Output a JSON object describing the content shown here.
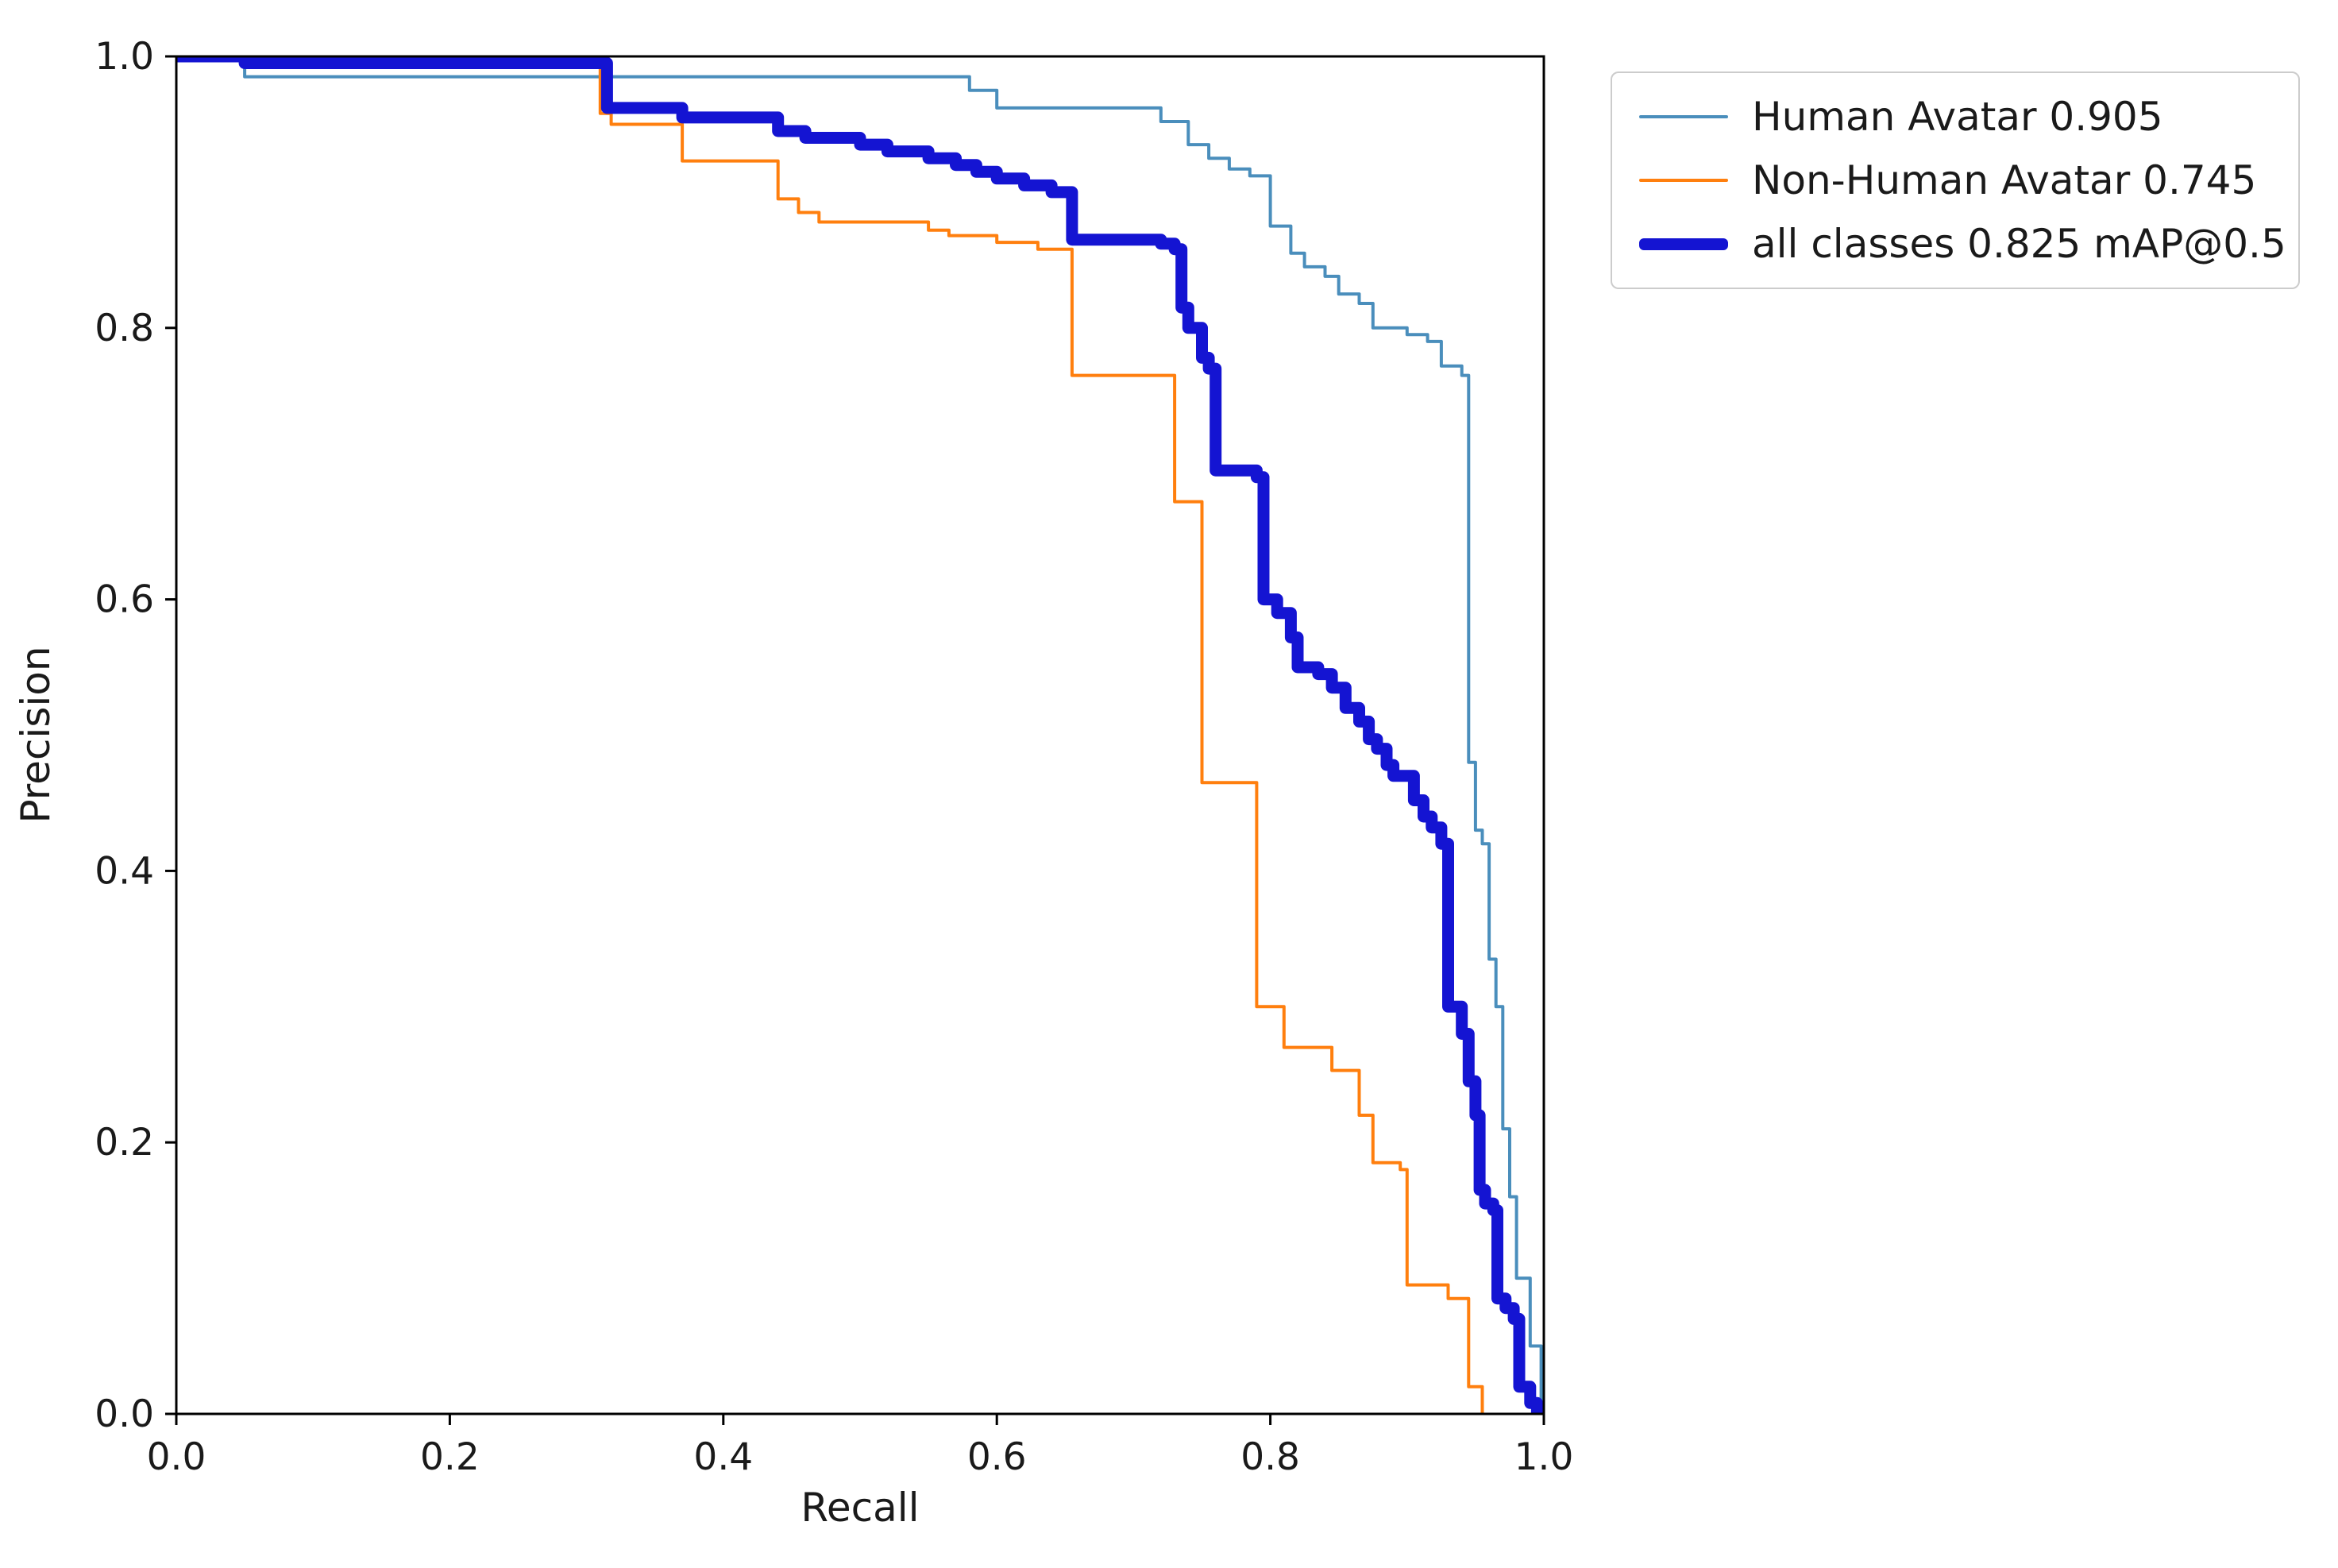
{
  "chart_data": {
    "type": "line",
    "subtype": "precision-recall-step-curves",
    "title": "",
    "xlabel": "Recall",
    "ylabel": "Precision",
    "xlim": [
      0.0,
      1.0
    ],
    "ylim": [
      0.0,
      1.0
    ],
    "grid": false,
    "legend_position": "outside-top-right",
    "x_ticks": {
      "values": [
        0.0,
        0.2,
        0.4,
        0.6,
        0.8,
        1.0
      ],
      "labels": [
        "0.0",
        "0.2",
        "0.4",
        "0.6",
        "0.8",
        "1.0"
      ]
    },
    "y_ticks": {
      "values": [
        0.0,
        0.2,
        0.4,
        0.6,
        0.8,
        1.0
      ],
      "labels": [
        "0.0",
        "0.2",
        "0.4",
        "0.6",
        "0.8",
        "1.0"
      ]
    },
    "series": [
      {
        "name": "human-avatar",
        "label": "Human Avatar 0.905",
        "ap": 0.905,
        "color": "#4a8ebc",
        "line_width": 4,
        "points": [
          [
            0.0,
            1.0
          ],
          [
            0.05,
            0.985
          ],
          [
            0.58,
            0.975
          ],
          [
            0.6,
            0.962
          ],
          [
            0.72,
            0.952
          ],
          [
            0.74,
            0.935
          ],
          [
            0.755,
            0.925
          ],
          [
            0.77,
            0.917
          ],
          [
            0.785,
            0.912
          ],
          [
            0.8,
            0.875
          ],
          [
            0.815,
            0.855
          ],
          [
            0.825,
            0.845
          ],
          [
            0.84,
            0.838
          ],
          [
            0.85,
            0.825
          ],
          [
            0.865,
            0.818
          ],
          [
            0.875,
            0.8
          ],
          [
            0.9,
            0.795
          ],
          [
            0.915,
            0.79
          ],
          [
            0.925,
            0.772
          ],
          [
            0.94,
            0.765
          ],
          [
            0.945,
            0.48
          ],
          [
            0.95,
            0.43
          ],
          [
            0.955,
            0.42
          ],
          [
            0.96,
            0.335
          ],
          [
            0.965,
            0.3
          ],
          [
            0.97,
            0.21
          ],
          [
            0.975,
            0.16
          ],
          [
            0.98,
            0.1
          ],
          [
            0.99,
            0.05
          ],
          [
            0.998,
            0.0
          ]
        ]
      },
      {
        "name": "non-human-avatar",
        "label": "Non-Human Avatar 0.745",
        "ap": 0.745,
        "color": "#ff7f0e",
        "line_width": 4,
        "points": [
          [
            0.0,
            1.0
          ],
          [
            0.31,
            0.958
          ],
          [
            0.318,
            0.95
          ],
          [
            0.37,
            0.923
          ],
          [
            0.44,
            0.895
          ],
          [
            0.455,
            0.885
          ],
          [
            0.47,
            0.878
          ],
          [
            0.55,
            0.872
          ],
          [
            0.565,
            0.868
          ],
          [
            0.6,
            0.863
          ],
          [
            0.63,
            0.858
          ],
          [
            0.655,
            0.765
          ],
          [
            0.73,
            0.672
          ],
          [
            0.75,
            0.465
          ],
          [
            0.79,
            0.3
          ],
          [
            0.81,
            0.27
          ],
          [
            0.845,
            0.253
          ],
          [
            0.865,
            0.22
          ],
          [
            0.875,
            0.185
          ],
          [
            0.895,
            0.18
          ],
          [
            0.9,
            0.095
          ],
          [
            0.93,
            0.085
          ],
          [
            0.945,
            0.02
          ],
          [
            0.955,
            0.0
          ]
        ]
      },
      {
        "name": "all-classes",
        "label": "all classes 0.825 mAP@0.5",
        "map_at_05": 0.825,
        "color": "#1414d2",
        "line_width": 15,
        "points": [
          [
            0.0,
            1.0
          ],
          [
            0.05,
            0.995
          ],
          [
            0.315,
            0.962
          ],
          [
            0.37,
            0.955
          ],
          [
            0.44,
            0.945
          ],
          [
            0.46,
            0.94
          ],
          [
            0.5,
            0.935
          ],
          [
            0.52,
            0.93
          ],
          [
            0.55,
            0.925
          ],
          [
            0.57,
            0.92
          ],
          [
            0.585,
            0.915
          ],
          [
            0.6,
            0.91
          ],
          [
            0.62,
            0.905
          ],
          [
            0.64,
            0.9
          ],
          [
            0.655,
            0.865
          ],
          [
            0.72,
            0.862
          ],
          [
            0.73,
            0.858
          ],
          [
            0.735,
            0.815
          ],
          [
            0.74,
            0.8
          ],
          [
            0.75,
            0.778
          ],
          [
            0.755,
            0.77
          ],
          [
            0.76,
            0.695
          ],
          [
            0.79,
            0.69
          ],
          [
            0.795,
            0.6
          ],
          [
            0.805,
            0.59
          ],
          [
            0.815,
            0.572
          ],
          [
            0.82,
            0.55
          ],
          [
            0.835,
            0.545
          ],
          [
            0.845,
            0.535
          ],
          [
            0.855,
            0.52
          ],
          [
            0.865,
            0.51
          ],
          [
            0.872,
            0.497
          ],
          [
            0.878,
            0.49
          ],
          [
            0.885,
            0.478
          ],
          [
            0.89,
            0.47
          ],
          [
            0.905,
            0.452
          ],
          [
            0.912,
            0.44
          ],
          [
            0.918,
            0.432
          ],
          [
            0.925,
            0.42
          ],
          [
            0.93,
            0.3
          ],
          [
            0.94,
            0.28
          ],
          [
            0.945,
            0.245
          ],
          [
            0.95,
            0.22
          ],
          [
            0.953,
            0.165
          ],
          [
            0.957,
            0.155
          ],
          [
            0.963,
            0.15
          ],
          [
            0.966,
            0.085
          ],
          [
            0.972,
            0.078
          ],
          [
            0.978,
            0.07
          ],
          [
            0.982,
            0.02
          ],
          [
            0.99,
            0.008
          ],
          [
            0.995,
            0.0
          ]
        ]
      }
    ],
    "colors": {
      "axes": "#000000",
      "text": "#1a1a1a",
      "background": "#ffffff",
      "legend_border": "#cccccc"
    }
  }
}
